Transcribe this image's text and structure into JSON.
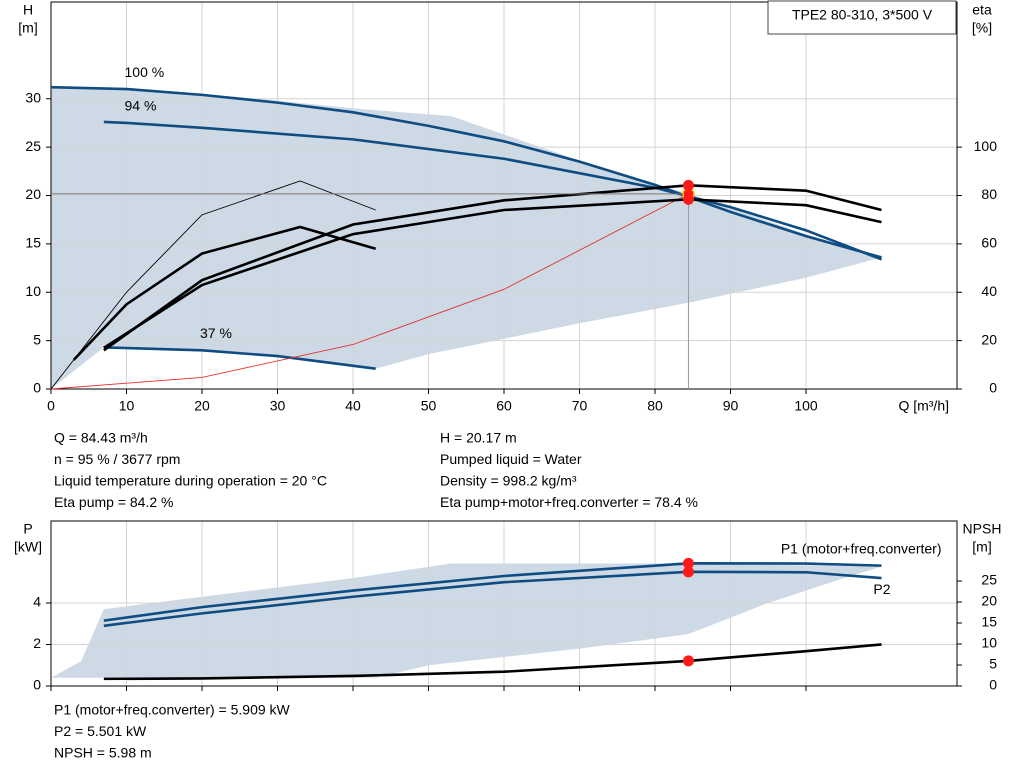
{
  "chart_data": [
    {
      "type": "line",
      "title": "TPE2 80-310, 3*500 V",
      "x_label": "Q [m³/h]",
      "y_label": "H",
      "y_unit": "[m]",
      "y2_label": "eta",
      "y2_unit": "[%]",
      "xlim": [
        0,
        120
      ],
      "xticks": [
        0,
        10,
        20,
        30,
        40,
        50,
        60,
        70,
        80,
        90,
        100
      ],
      "ylim": [
        0,
        40
      ],
      "yticks": [
        0,
        5,
        10,
        15,
        20,
        25,
        30
      ],
      "y2lim": [
        0,
        160
      ],
      "y2ticks": [
        0,
        20,
        40,
        60,
        80,
        100
      ],
      "grid": true,
      "area": {
        "color": "#cdd9e5",
        "x": [
          0,
          0,
          10,
          20,
          30,
          40,
          53,
          70,
          84.4,
          100,
          110,
          100,
          85,
          70,
          60,
          50,
          43,
          30,
          20,
          7,
          0
        ],
        "values": [
          0,
          31.2,
          31,
          30.5,
          29.8,
          29,
          28.2,
          23.6,
          20.2,
          16,
          13.6,
          11.5,
          9,
          6.8,
          5.2,
          3.6,
          2.1,
          3.4,
          4,
          4.3,
          0
        ]
      },
      "series": [
        {
          "name": "100 %",
          "color": "#0f4c81",
          "style": "thick",
          "x": [
            0,
            10,
            20,
            30,
            40,
            50,
            60,
            70,
            80,
            90,
            100,
            110
          ],
          "values": [
            31.2,
            31,
            30.4,
            29.6,
            28.6,
            27.2,
            25.6,
            23.5,
            21.1,
            18.3,
            15.8,
            13.6
          ]
        },
        {
          "name": "94 %",
          "color": "#0f4c81",
          "style": "thick",
          "x": [
            7,
            10,
            20,
            40,
            60,
            80,
            90,
            100,
            110
          ],
          "values": [
            27.6,
            27.5,
            27,
            25.8,
            23.8,
            20.8,
            18.8,
            16.4,
            13.4
          ]
        },
        {
          "name": "37 %",
          "color": "#0f4c81",
          "style": "thick",
          "x": [
            7,
            20,
            30,
            43
          ],
          "values": [
            4.3,
            4,
            3.4,
            2.1
          ]
        },
        {
          "color": "#e53030",
          "style": "thin",
          "x": [
            0,
            20,
            40,
            60,
            84.43
          ],
          "values": [
            0,
            1.2,
            4.6,
            10.3,
            20.17
          ]
        },
        {
          "color": "#000000",
          "style": "thick",
          "axis": "y2",
          "x": [
            7,
            20,
            40,
            60,
            84.43,
            100,
            110
          ],
          "values": [
            16,
            45,
            68,
            78,
            84.2,
            82,
            74
          ]
        },
        {
          "color": "#000000",
          "style": "thick",
          "axis": "y2",
          "x": [
            7,
            20,
            40,
            60,
            84.43,
            100,
            110
          ],
          "values": [
            17,
            43,
            64,
            74,
            78.4,
            76,
            69
          ]
        },
        {
          "color": "#000000",
          "style": "thick",
          "axis": "y2",
          "x": [
            3,
            10,
            20,
            33,
            43
          ],
          "values": [
            12,
            35,
            56,
            67,
            58
          ]
        },
        {
          "color": "#000000",
          "style": "thin",
          "axis": "y2",
          "x": [
            0,
            10,
            20,
            33,
            43
          ],
          "values": [
            0,
            40,
            72,
            86,
            74
          ]
        }
      ],
      "markers": [
        {
          "x": 84.43,
          "value": 20.17
        },
        {
          "x": 84.43,
          "value": 84.2,
          "axis": "y2"
        },
        {
          "x": 84.43,
          "value": 78.4,
          "axis": "y2"
        }
      ],
      "info": [
        [
          "Q = 84.43 m³/h",
          "n = 95 % / 3677 rpm",
          "Liquid temperature during operation = 20 °C",
          "Eta pump = 84.2 %"
        ],
        [
          "H = 20.17 m",
          "Pumped liquid = Water",
          "Density = 998.2 kg/m³",
          "Eta pump+motor+freq.converter = 78.4 %"
        ]
      ]
    },
    {
      "type": "line",
      "y_label": "P",
      "y_unit": "[kW]",
      "y2_label": "NPSH",
      "y2_unit": "[m]",
      "xlim": [
        0,
        120
      ],
      "xticks": [
        0,
        10,
        20,
        30,
        40,
        50,
        60,
        70,
        80,
        90,
        100
      ],
      "ylim": [
        0,
        7.95
      ],
      "yticks": [
        0,
        2,
        4
      ],
      "y2lim": [
        0,
        39.3
      ],
      "y2ticks": [
        0,
        5,
        10,
        15,
        20,
        25
      ],
      "grid": true,
      "area": {
        "color": "#cdd9e5",
        "x": [
          0,
          4,
          7,
          20,
          40,
          53,
          84.4,
          110,
          105,
          95,
          84.4,
          70,
          50,
          43,
          0
        ],
        "values": [
          0.4,
          1.2,
          3.7,
          4.3,
          5.2,
          5.9,
          5.9,
          5.75,
          5.2,
          4,
          2.5,
          1.8,
          1,
          0.4,
          0.4
        ]
      },
      "series": [
        {
          "name": "P1 (motor+freq.converter)",
          "color": "#0f4c81",
          "style": "thick",
          "x": [
            7,
            20,
            40,
            60,
            84.43,
            100,
            110
          ],
          "values": [
            3.15,
            3.8,
            4.6,
            5.3,
            5.909,
            5.9,
            5.8
          ]
        },
        {
          "name": "P2",
          "color": "#0f4c81",
          "style": "thick",
          "x": [
            7,
            20,
            40,
            60,
            84.43,
            100,
            110
          ],
          "values": [
            2.9,
            3.5,
            4.3,
            5,
            5.501,
            5.48,
            5.2
          ]
        },
        {
          "color": "#000000",
          "style": "thick",
          "axis": "y2",
          "x": [
            7,
            20,
            40,
            60,
            84.43,
            100,
            110
          ],
          "values": [
            1.7,
            1.8,
            2.4,
            3.4,
            5.98,
            8.3,
            9.9
          ]
        }
      ],
      "markers": [
        {
          "x": 84.43,
          "value": 5.909
        },
        {
          "x": 84.43,
          "value": 5.501
        },
        {
          "x": 84.43,
          "value": 5.98,
          "axis": "y2"
        }
      ],
      "info": [
        [
          "P1 (motor+freq.converter) = 5.909 kW",
          "P2 = 5.501 kW",
          "NPSH = 5.98 m"
        ]
      ]
    }
  ]
}
